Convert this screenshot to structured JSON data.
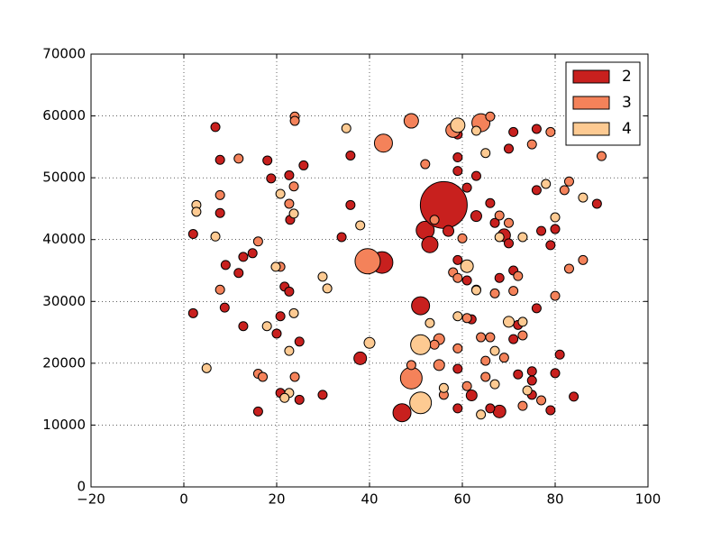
{
  "chart_data": {
    "type": "scatter",
    "xlim": [
      -20,
      100
    ],
    "ylim": [
      0,
      70000
    ],
    "xticks": [
      {
        "value": -20,
        "label": "−20"
      },
      0,
      20,
      40,
      60,
      80,
      100
    ],
    "yticks": [
      0,
      10000,
      20000,
      30000,
      40000,
      50000,
      60000,
      70000
    ],
    "grid": true,
    "legend": "upper right",
    "series": [
      {
        "name": "2",
        "color": "#c8201e",
        "x": [
          6.8,
          7.8,
          7.8,
          9,
          8.8,
          11.8,
          12.8,
          14.8,
          12.8,
          16,
          18,
          18.8,
          20,
          20.8,
          21.7,
          22.7,
          22.7,
          22.9,
          25.8,
          24.9,
          24.9,
          20.8,
          29.9,
          34,
          35.9,
          35.9,
          38,
          42.7,
          47,
          51,
          52,
          53,
          56,
          57,
          59,
          59,
          59,
          59,
          59,
          59,
          61,
          61,
          63,
          63,
          62,
          62,
          66,
          67,
          68,
          69,
          70,
          70,
          71,
          71,
          72,
          71,
          72,
          75,
          75,
          76,
          76,
          76,
          77,
          75,
          79,
          79,
          80,
          80,
          81,
          84,
          89,
          68,
          66,
          2,
          2
        ],
        "y": [
          58200,
          52900,
          44300,
          35900,
          29000,
          34600,
          37200,
          37800,
          26000,
          12200,
          52800,
          49900,
          24800,
          27600,
          32400,
          31600,
          50400,
          43200,
          52000,
          23500,
          14100,
          15200,
          14900,
          40400,
          53600,
          45600,
          20800,
          36300,
          12000,
          29300,
          41500,
          39200,
          45600,
          41400,
          57000,
          53300,
          51100,
          36700,
          19100,
          12700,
          48400,
          33400,
          50300,
          43800,
          27100,
          14800,
          45900,
          42700,
          33800,
          40700,
          39400,
          54700,
          57400,
          35000,
          26200,
          23900,
          18200,
          17200,
          18700,
          48000,
          57900,
          28900,
          41400,
          14900,
          12400,
          39100,
          41700,
          18400,
          21400,
          14600,
          45800,
          12200,
          12700,
          40900,
          28100
        ],
        "sizes": [
          5,
          5,
          5,
          5,
          5,
          5,
          5,
          5,
          5,
          5,
          5,
          5,
          5,
          5,
          5,
          5,
          5,
          5,
          5,
          5,
          5,
          5,
          5,
          5,
          5,
          5,
          7,
          12,
          10,
          10,
          10,
          9,
          26,
          6,
          5,
          5,
          5,
          5,
          5,
          5,
          5,
          5,
          5,
          6,
          5,
          6,
          5,
          5,
          5,
          7,
          5,
          5,
          5,
          5,
          5,
          5,
          5,
          5,
          5,
          5,
          5,
          5,
          5,
          5,
          5,
          5,
          5,
          5,
          5,
          5,
          5,
          7,
          5,
          5,
          5
        ]
      },
      {
        "name": "3",
        "color": "#f4825a",
        "x": [
          7.8,
          7.8,
          11.8,
          16,
          16,
          17,
          20.8,
          23.7,
          23.9,
          23.9,
          23.9,
          22.7,
          39.6,
          43,
          49,
          49,
          49,
          52,
          54,
          55,
          55,
          54,
          56,
          58,
          64,
          66,
          59,
          60,
          58,
          59,
          61,
          63,
          64,
          65,
          65,
          67,
          68,
          69,
          70,
          71,
          72,
          73,
          73,
          75,
          77,
          79,
          80,
          82,
          83,
          83,
          86,
          90,
          66,
          61
        ],
        "y": [
          47200,
          31900,
          53100,
          39700,
          18300,
          17800,
          35600,
          48600,
          59900,
          59200,
          17800,
          45800,
          36500,
          55600,
          59200,
          17600,
          19700,
          52200,
          43200,
          23900,
          19700,
          23000,
          14900,
          57700,
          58900,
          59900,
          22400,
          40200,
          34700,
          33800,
          16300,
          31900,
          24200,
          20400,
          17800,
          31300,
          43900,
          20900,
          42700,
          31700,
          34100,
          24500,
          13100,
          55400,
          14000,
          57400,
          30900,
          48000,
          49400,
          35300,
          36700,
          53500,
          24200,
          27300
        ],
        "sizes": [
          5,
          5,
          5,
          5,
          5,
          5,
          5,
          5,
          5,
          5,
          5,
          5,
          14,
          10,
          8,
          12,
          5,
          5,
          5,
          6,
          6,
          5,
          5,
          8,
          10,
          5,
          5,
          5,
          5,
          5,
          5,
          5,
          5,
          5,
          5,
          5,
          5,
          5,
          5,
          5,
          5,
          5,
          5,
          5,
          5,
          5,
          5,
          5,
          5,
          5,
          5,
          5,
          5,
          5
        ]
      },
      {
        "name": "4",
        "color": "#fdca92",
        "x": [
          2.7,
          2.7,
          6.8,
          4.9,
          19.8,
          20.8,
          23.7,
          23.7,
          22.7,
          22.7,
          21.7,
          17.9,
          29.9,
          30.9,
          35,
          38,
          40,
          51,
          51,
          53,
          56,
          59,
          59,
          61,
          63,
          63,
          64,
          65,
          67,
          67,
          68,
          70,
          73,
          73,
          74,
          78,
          80,
          86
        ],
        "y": [
          45600,
          44500,
          40500,
          19200,
          35600,
          47400,
          44200,
          28100,
          22000,
          15200,
          14400,
          26000,
          34000,
          32100,
          58000,
          42300,
          23300,
          23000,
          13600,
          26500,
          16000,
          58500,
          27600,
          35700,
          57600,
          31800,
          11700,
          54000,
          22000,
          16600,
          40400,
          26700,
          26700,
          40400,
          15600,
          49000,
          43600,
          46800
        ],
        "sizes": [
          5,
          5,
          5,
          5,
          5,
          5,
          5,
          5,
          5,
          5,
          5,
          5,
          5,
          5,
          5,
          5,
          6,
          11,
          12,
          5,
          5,
          8,
          5,
          7,
          5,
          5,
          5,
          5,
          5,
          5,
          5,
          6,
          5,
          5,
          5,
          5,
          5,
          5
        ]
      }
    ]
  }
}
